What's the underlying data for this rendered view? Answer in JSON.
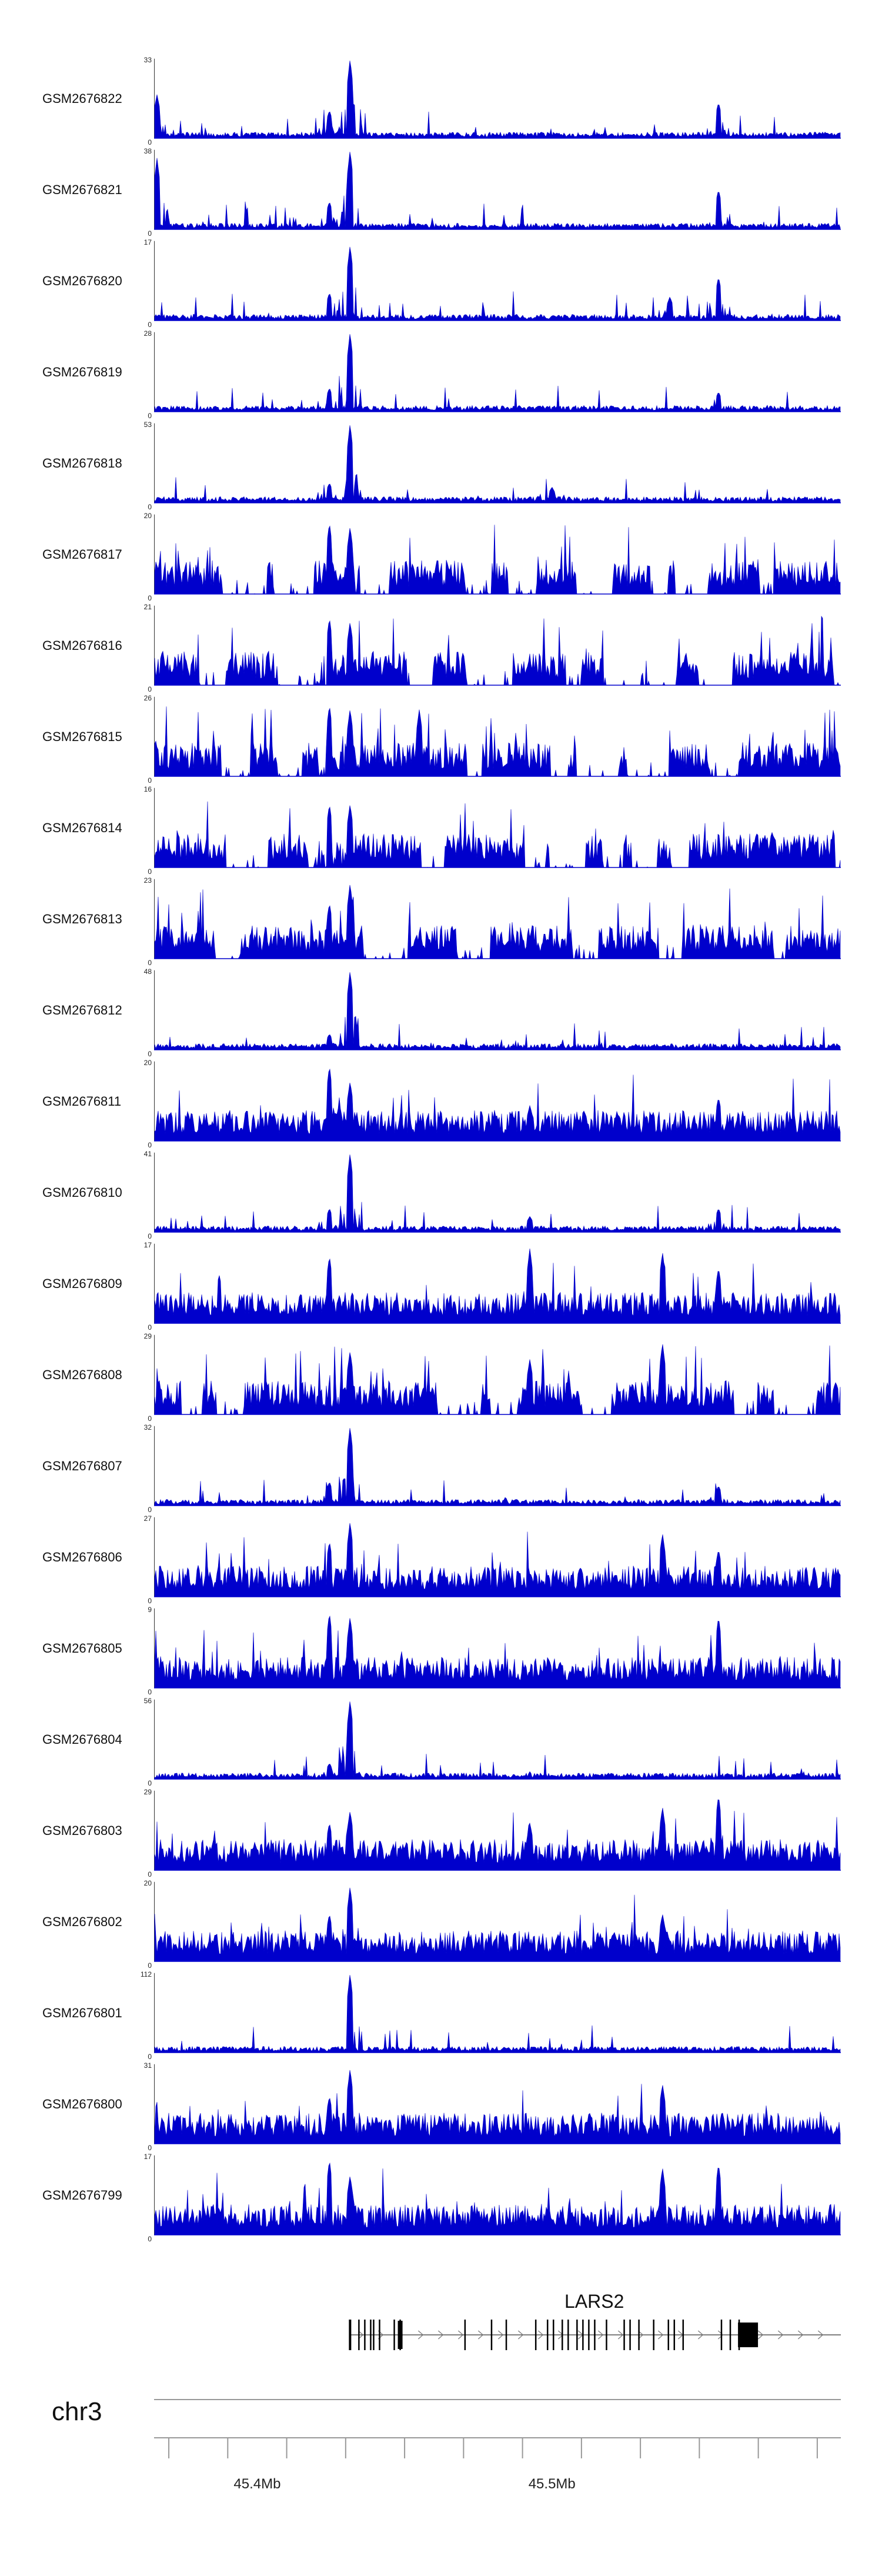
{
  "chart_data": {
    "type": "area",
    "title": "",
    "chromosome": "chr3",
    "x_unit": "Mb",
    "xlim_mb": [
      45.365,
      45.598
    ],
    "axis_ticks_mb": [
      45.4,
      45.5
    ],
    "axis_tick_labels": [
      "45.4Mb",
      "45.5Mb"
    ],
    "color": "#0000cc",
    "series": [
      {
        "name": "GSM2676822",
        "ymax": 33,
        "style": "sparse",
        "peaks": [
          {
            "x": 45.4315,
            "h": 1.0
          },
          {
            "x": 45.4245,
            "h": 0.35
          },
          {
            "x": 45.5565,
            "h": 0.45
          },
          {
            "x": 45.366,
            "h": 0.55
          }
        ]
      },
      {
        "name": "GSM2676821",
        "ymax": 38,
        "style": "sparse",
        "peaks": [
          {
            "x": 45.4315,
            "h": 1.0
          },
          {
            "x": 45.4245,
            "h": 0.35
          },
          {
            "x": 45.5565,
            "h": 0.5
          },
          {
            "x": 45.366,
            "h": 0.9
          }
        ]
      },
      {
        "name": "GSM2676820",
        "ymax": 17,
        "style": "sparse",
        "peaks": [
          {
            "x": 45.4315,
            "h": 0.95
          },
          {
            "x": 45.4245,
            "h": 0.35
          },
          {
            "x": 45.5565,
            "h": 0.55
          },
          {
            "x": 45.54,
            "h": 0.3
          }
        ]
      },
      {
        "name": "GSM2676819",
        "ymax": 28,
        "style": "sparse",
        "peaks": [
          {
            "x": 45.4315,
            "h": 1.0
          },
          {
            "x": 45.4245,
            "h": 0.3
          },
          {
            "x": 45.5565,
            "h": 0.25
          }
        ]
      },
      {
        "name": "GSM2676818",
        "ymax": 53,
        "style": "sparse",
        "peaks": [
          {
            "x": 45.4315,
            "h": 1.0
          },
          {
            "x": 45.4245,
            "h": 0.25
          },
          {
            "x": 45.5,
            "h": 0.2
          }
        ]
      },
      {
        "name": "GSM2676817",
        "ymax": 20,
        "style": "gappy",
        "peaks": [
          {
            "x": 45.4245,
            "h": 0.9
          },
          {
            "x": 45.4315,
            "h": 0.85
          }
        ]
      },
      {
        "name": "GSM2676816",
        "ymax": 21,
        "style": "gappy",
        "peaks": [
          {
            "x": 45.4245,
            "h": 0.85
          },
          {
            "x": 45.4315,
            "h": 0.8
          }
        ]
      },
      {
        "name": "GSM2676815",
        "ymax": 26,
        "style": "gappy",
        "peaks": [
          {
            "x": 45.4245,
            "h": 0.9
          },
          {
            "x": 45.4315,
            "h": 0.85
          },
          {
            "x": 45.455,
            "h": 0.85
          }
        ]
      },
      {
        "name": "GSM2676814",
        "ymax": 16,
        "style": "gappy",
        "peaks": [
          {
            "x": 45.4245,
            "h": 0.8
          },
          {
            "x": 45.4315,
            "h": 0.8
          }
        ]
      },
      {
        "name": "GSM2676813",
        "ymax": 23,
        "style": "gappy",
        "peaks": [
          {
            "x": 45.4315,
            "h": 0.95
          },
          {
            "x": 45.4245,
            "h": 0.7
          }
        ]
      },
      {
        "name": "GSM2676812",
        "ymax": 48,
        "style": "sparse",
        "peaks": [
          {
            "x": 45.4315,
            "h": 1.0
          },
          {
            "x": 45.4245,
            "h": 0.2
          }
        ]
      },
      {
        "name": "GSM2676811",
        "ymax": 20,
        "style": "dense",
        "peaks": [
          {
            "x": 45.4245,
            "h": 0.95
          },
          {
            "x": 45.4315,
            "h": 0.75
          },
          {
            "x": 45.5565,
            "h": 0.55
          },
          {
            "x": 45.4925,
            "h": 0.45
          }
        ]
      },
      {
        "name": "GSM2676810",
        "ymax": 41,
        "style": "sparse",
        "peaks": [
          {
            "x": 45.4315,
            "h": 1.0
          },
          {
            "x": 45.4245,
            "h": 0.3
          },
          {
            "x": 45.5565,
            "h": 0.3
          },
          {
            "x": 45.4925,
            "h": 0.2
          }
        ]
      },
      {
        "name": "GSM2676809",
        "ymax": 17,
        "style": "dense",
        "peaks": [
          {
            "x": 45.4245,
            "h": 0.85
          },
          {
            "x": 45.4925,
            "h": 0.95
          },
          {
            "x": 45.5375,
            "h": 0.9
          },
          {
            "x": 45.5565,
            "h": 0.7
          }
        ]
      },
      {
        "name": "GSM2676808",
        "ymax": 29,
        "style": "gappy",
        "peaks": [
          {
            "x": 45.4315,
            "h": 0.8
          },
          {
            "x": 45.5375,
            "h": 0.9
          },
          {
            "x": 45.4925,
            "h": 0.7
          }
        ]
      },
      {
        "name": "GSM2676807",
        "ymax": 32,
        "style": "sparse",
        "peaks": [
          {
            "x": 45.4315,
            "h": 1.0
          },
          {
            "x": 45.4245,
            "h": 0.3
          },
          {
            "x": 45.5565,
            "h": 0.25
          }
        ]
      },
      {
        "name": "GSM2676806",
        "ymax": 27,
        "style": "dense",
        "peaks": [
          {
            "x": 45.4315,
            "h": 0.95
          },
          {
            "x": 45.4245,
            "h": 0.7
          },
          {
            "x": 45.5375,
            "h": 0.8
          },
          {
            "x": 45.5565,
            "h": 0.6
          }
        ]
      },
      {
        "name": "GSM2676805",
        "ymax": 9,
        "style": "dense",
        "peaks": [
          {
            "x": 45.4245,
            "h": 0.95
          },
          {
            "x": 45.4315,
            "h": 0.9
          },
          {
            "x": 45.5565,
            "h": 0.9
          }
        ]
      },
      {
        "name": "GSM2676804",
        "ymax": 56,
        "style": "sparse",
        "peaks": [
          {
            "x": 45.4315,
            "h": 1.0
          },
          {
            "x": 45.4245,
            "h": 0.2
          }
        ]
      },
      {
        "name": "GSM2676803",
        "ymax": 29,
        "style": "dense",
        "peaks": [
          {
            "x": 45.4245,
            "h": 0.6
          },
          {
            "x": 45.4315,
            "h": 0.75
          },
          {
            "x": 45.4925,
            "h": 0.6
          },
          {
            "x": 45.5375,
            "h": 0.8
          },
          {
            "x": 45.5565,
            "h": 0.95
          }
        ]
      },
      {
        "name": "GSM2676802",
        "ymax": 20,
        "style": "dense",
        "peaks": [
          {
            "x": 45.4315,
            "h": 0.95
          },
          {
            "x": 45.4245,
            "h": 0.6
          },
          {
            "x": 45.5375,
            "h": 0.6
          }
        ]
      },
      {
        "name": "GSM2676801",
        "ymax": 112,
        "style": "sparse",
        "peaks": [
          {
            "x": 45.4315,
            "h": 1.0
          }
        ]
      },
      {
        "name": "GSM2676800",
        "ymax": 31,
        "style": "dense",
        "peaks": [
          {
            "x": 45.4315,
            "h": 0.95
          },
          {
            "x": 45.4245,
            "h": 0.6
          },
          {
            "x": 45.5375,
            "h": 0.75
          }
        ]
      },
      {
        "name": "GSM2676799",
        "ymax": 17,
        "style": "dense",
        "peaks": [
          {
            "x": 45.4245,
            "h": 0.95
          },
          {
            "x": 45.4315,
            "h": 0.75
          },
          {
            "x": 45.5375,
            "h": 0.85
          },
          {
            "x": 45.5565,
            "h": 0.9
          }
        ]
      }
    ],
    "y_min_label": "0",
    "gene": {
      "name": "LARS2",
      "strand": "+",
      "start_mb": 45.4315,
      "end_mb": 45.598,
      "exons_mb": [
        45.4315,
        45.4345,
        45.4365,
        45.4385,
        45.4395,
        45.4415,
        45.4465,
        45.4485,
        45.4705,
        45.4795,
        45.4845,
        45.4945,
        45.4985,
        45.5005,
        45.5035,
        45.5055,
        45.5085,
        45.5105,
        45.5125,
        45.5145,
        45.5185,
        45.5245,
        45.5265,
        45.5295,
        45.5345,
        45.5395,
        45.5415,
        45.5445,
        45.5575,
        45.5605,
        45.5635,
        45.5665
      ]
    }
  }
}
